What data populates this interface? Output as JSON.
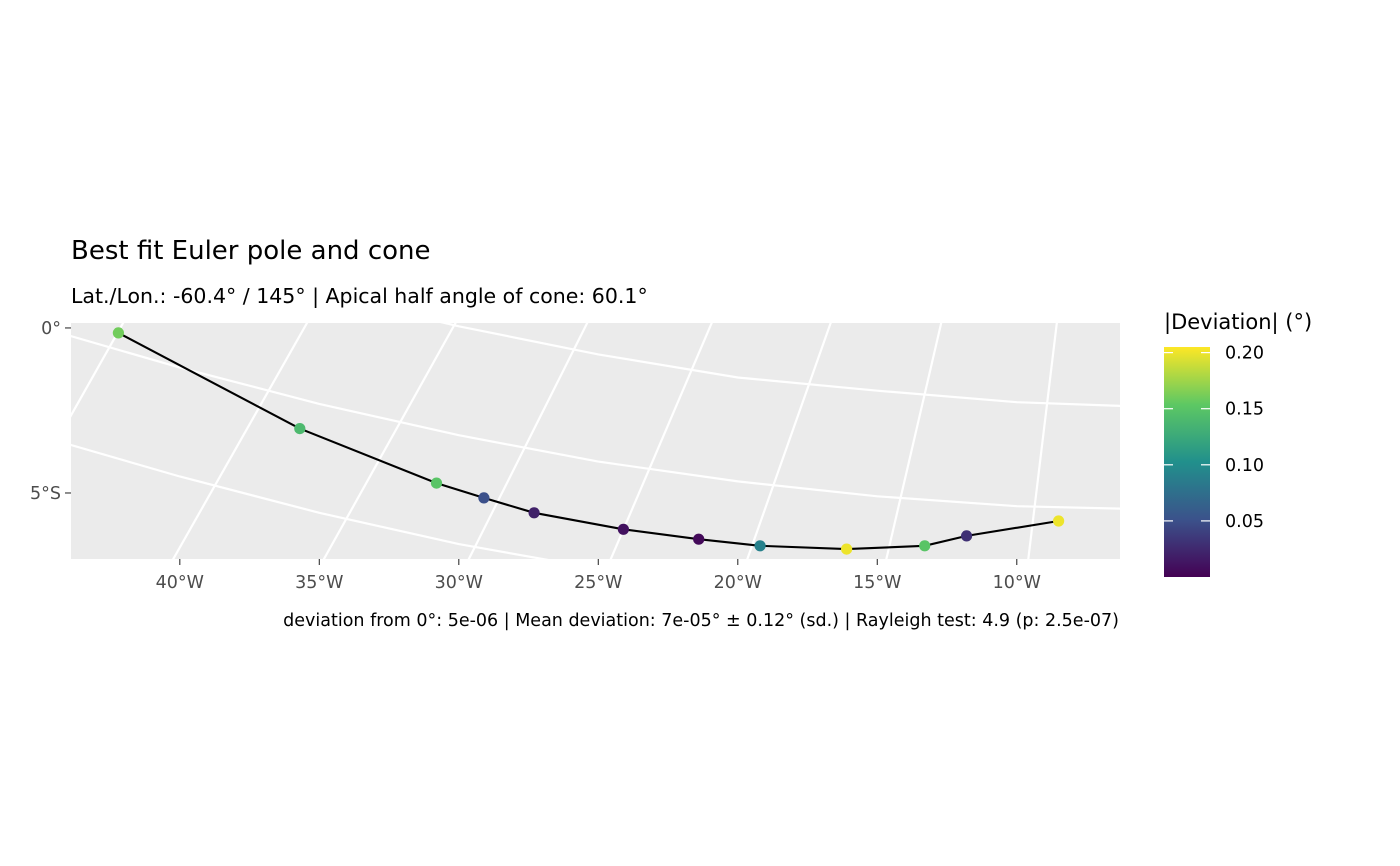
{
  "chart_data": {
    "type": "line",
    "title": "Best fit Euler pole and cone",
    "subtitle": "Lat./Lon.: -60.4° / 145° | Apical half angle of cone: 60.1°",
    "caption": "deviation from 0°: 5e-06 | Mean deviation: 7e-05° ± 0.12° (sd.) | Rayleigh test: 4.9 (p: 2.5e-07)",
    "xlim": [
      -43.9,
      -6.3
    ],
    "ylim": [
      -7.0,
      0.15
    ],
    "x_ticks": [
      {
        "value": -40,
        "label": "40°W"
      },
      {
        "value": -35,
        "label": "35°W"
      },
      {
        "value": -30,
        "label": "30°W"
      },
      {
        "value": -25,
        "label": "25°W"
      },
      {
        "value": -20,
        "label": "20°W"
      },
      {
        "value": -15,
        "label": "15°W"
      },
      {
        "value": -10,
        "label": "10°W"
      }
    ],
    "y_ticks": [
      {
        "value": 0,
        "label": "0°"
      },
      {
        "value": -5,
        "label": "5°S"
      }
    ],
    "grid": true,
    "legend": {
      "title": "|Deviation| (°)",
      "position": "right",
      "min": 0.0,
      "max": 0.205,
      "breaks": [
        {
          "value": 0.2,
          "label": "0.20"
        },
        {
          "value": 0.15,
          "label": "0.15"
        },
        {
          "value": 0.1,
          "label": "0.10"
        },
        {
          "value": 0.05,
          "label": "0.05"
        }
      ],
      "colormap": [
        "#440154",
        "#3b528b",
        "#21908c",
        "#5dc863",
        "#fde725"
      ]
    },
    "points": [
      {
        "lon": -42.2,
        "lat": -0.15,
        "deviation": 0.16
      },
      {
        "lon": -35.7,
        "lat": -3.05,
        "deviation": 0.14
      },
      {
        "lon": -30.8,
        "lat": -4.7,
        "deviation": 0.15
      },
      {
        "lon": -29.1,
        "lat": -5.15,
        "deviation": 0.05
      },
      {
        "lon": -27.3,
        "lat": -5.6,
        "deviation": 0.02
      },
      {
        "lon": -24.1,
        "lat": -6.1,
        "deviation": 0.01
      },
      {
        "lon": -21.4,
        "lat": -6.4,
        "deviation": 0.005
      },
      {
        "lon": -19.2,
        "lat": -6.6,
        "deviation": 0.09
      },
      {
        "lon": -16.1,
        "lat": -6.7,
        "deviation": 0.2
      },
      {
        "lon": -13.3,
        "lat": -6.6,
        "deviation": 0.15
      },
      {
        "lon": -11.8,
        "lat": -6.3,
        "deviation": 0.03
      },
      {
        "lon": -8.5,
        "lat": -5.85,
        "deviation": 0.2
      }
    ],
    "cone_circles": [
      {
        "points": [
          [
            -44.5,
            3.2
          ],
          [
            -40,
            2.15
          ],
          [
            -35,
            1.05
          ],
          [
            -30,
            0.05
          ],
          [
            -25,
            -0.8
          ],
          [
            -20,
            -1.5
          ],
          [
            -15,
            -1.9
          ],
          [
            -10,
            -2.25
          ],
          [
            -5,
            -2.4
          ]
        ]
      },
      {
        "points": [
          [
            -44.5,
            -0.1
          ],
          [
            -40,
            -1.2
          ],
          [
            -35,
            -2.3
          ],
          [
            -30,
            -3.25
          ],
          [
            -25,
            -4.05
          ],
          [
            -20,
            -4.65
          ],
          [
            -15,
            -5.1
          ],
          [
            -10,
            -5.4
          ],
          [
            -5,
            -5.5
          ]
        ]
      },
      {
        "points": [
          [
            -44.5,
            -3.4
          ],
          [
            -40,
            -4.5
          ],
          [
            -35,
            -5.6
          ],
          [
            -30,
            -6.55
          ],
          [
            -25,
            -7.3
          ],
          [
            -22.5,
            -7.55
          ]
        ]
      }
    ],
    "meridians": [
      {
        "points": [
          [
            -44.2,
            -3.1
          ],
          [
            -40.8,
            2.0
          ]
        ]
      },
      {
        "points": [
          [
            -40.3,
            -7.1
          ],
          [
            -34.2,
            2.0
          ]
        ]
      },
      {
        "points": [
          [
            -34.9,
            -7.1
          ],
          [
            -28.9,
            2.0
          ]
        ]
      },
      {
        "points": [
          [
            -29.7,
            -7.1
          ],
          [
            -24.3,
            2.0
          ]
        ]
      },
      {
        "points": [
          [
            -24.6,
            -7.1
          ],
          [
            -20.0,
            2.0
          ]
        ]
      },
      {
        "points": [
          [
            -19.7,
            -7.1
          ],
          [
            -15.9,
            2.0
          ]
        ]
      },
      {
        "points": [
          [
            -14.7,
            -7.1
          ],
          [
            -12.2,
            2.0
          ]
        ]
      },
      {
        "points": [
          [
            -9.6,
            -7.1
          ],
          [
            -8.3,
            2.0
          ]
        ]
      }
    ]
  }
}
